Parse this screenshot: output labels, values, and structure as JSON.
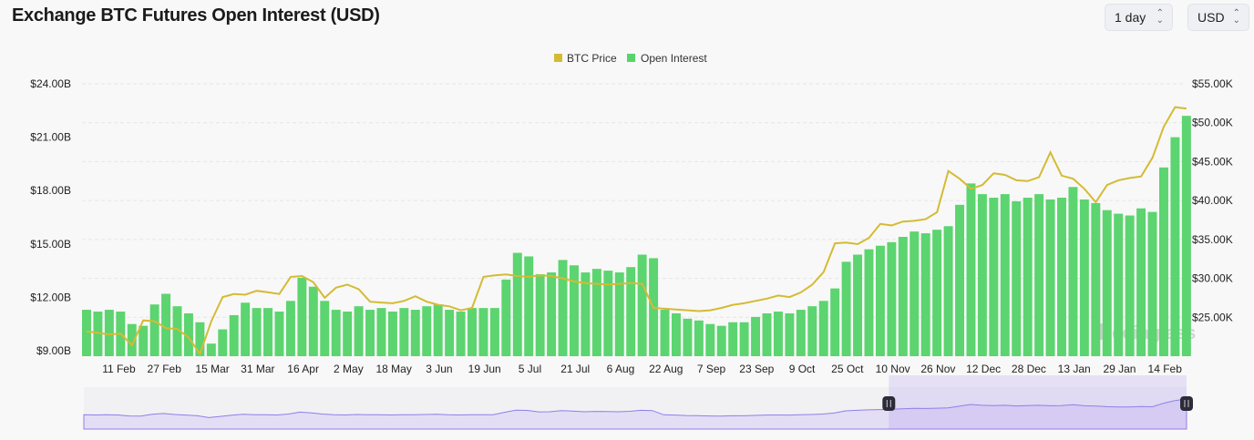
{
  "header": {
    "title": "Exchange BTC Futures Open Interest (USD)",
    "interval_select": "1 day",
    "currency_select": "USD"
  },
  "watermark": "coinglass",
  "chart_data": {
    "type": "bar+line",
    "title": "Exchange BTC Futures Open Interest (USD)",
    "legend": {
      "placement": "top-center",
      "entries": [
        {
          "name": "BTC Price",
          "color": "#d4bb34"
        },
        {
          "name": "Open Interest",
          "color": "#58d36c"
        }
      ]
    },
    "x": {
      "start_date": "29 Jan",
      "interval_days": 4,
      "tick_labels": [
        "11 Feb",
        "27 Feb",
        "15 Mar",
        "31 Mar",
        "16 Apr",
        "2 May",
        "18 May",
        "3 Jun",
        "19 Jun",
        "5 Jul",
        "21 Jul",
        "6 Aug",
        "22 Aug",
        "7 Sep",
        "23 Sep",
        "9 Oct",
        "25 Oct",
        "10 Nov",
        "26 Nov",
        "12 Dec",
        "28 Dec",
        "13 Jan",
        "29 Jan",
        "14 Feb"
      ],
      "tick_day_offsets": [
        13,
        29,
        46,
        62,
        78,
        94,
        110,
        126,
        142,
        158,
        174,
        190,
        206,
        222,
        238,
        254,
        270,
        286,
        302,
        318,
        334,
        350,
        366,
        382
      ]
    },
    "y_left": {
      "label": "Open Interest (USD)",
      "ticks": [
        "$24.00B",
        "$21.00B",
        "$18.00B",
        "$15.00B",
        "$12.00B",
        "$9.00B"
      ],
      "range": [
        9,
        24
      ],
      "unit": "B"
    },
    "y_right": {
      "label": "BTC Price",
      "ticks": [
        "$55.00K",
        "$50.00K",
        "$45.00K",
        "$40.00K",
        "$35.00K",
        "$30.00K",
        "$25.00K"
      ],
      "range": [
        20,
        55
      ],
      "unit": "K"
    },
    "grid": true,
    "series": [
      {
        "name": "Open Interest",
        "axis": "left",
        "type": "bar",
        "values": [
          11.3,
          11.2,
          11.3,
          11.2,
          10.5,
          10.4,
          11.6,
          12.2,
          11.5,
          11.1,
          10.6,
          9.4,
          10.2,
          11.0,
          11.7,
          11.4,
          11.4,
          11.2,
          11.8,
          13.1,
          12.6,
          11.8,
          11.3,
          11.2,
          11.5,
          11.3,
          11.4,
          11.2,
          11.4,
          11.3,
          11.5,
          11.6,
          11.3,
          11.2,
          11.4,
          11.4,
          11.4,
          13.0,
          14.5,
          14.3,
          13.3,
          13.4,
          14.1,
          13.8,
          13.4,
          13.6,
          13.5,
          13.4,
          13.7,
          14.4,
          14.2,
          11.3,
          11.1,
          10.8,
          10.7,
          10.5,
          10.4,
          10.6,
          10.6,
          10.9,
          11.1,
          11.2,
          11.1,
          11.3,
          11.5,
          11.8,
          12.5,
          14.0,
          14.4,
          14.7,
          14.9,
          15.1,
          15.4,
          15.7,
          15.6,
          15.8,
          16.0,
          17.2,
          18.4,
          17.8,
          17.6,
          17.8,
          17.4,
          17.6,
          17.8,
          17.5,
          17.6,
          18.2,
          17.5,
          17.3,
          16.9,
          16.7,
          16.6,
          17.0,
          16.8,
          19.3,
          21.0,
          22.2
        ]
      },
      {
        "name": "BTC Price",
        "axis": "right",
        "type": "line",
        "values": [
          23.2,
          23.0,
          22.8,
          22.9,
          21.4,
          24.6,
          24.5,
          23.6,
          23.5,
          22.4,
          20.3,
          24.5,
          27.6,
          28.0,
          27.9,
          28.4,
          28.2,
          28.0,
          30.2,
          30.3,
          29.5,
          27.5,
          28.8,
          29.2,
          28.6,
          27.0,
          26.9,
          26.8,
          27.1,
          27.7,
          27.0,
          26.6,
          26.4,
          25.9,
          26.2,
          30.2,
          30.4,
          30.5,
          30.3,
          30.2,
          30.4,
          30.3,
          30.0,
          29.6,
          29.4,
          29.3,
          29.2,
          29.3,
          29.4,
          29.3,
          26.2,
          26.1,
          26.0,
          25.9,
          25.8,
          25.9,
          26.2,
          26.6,
          26.8,
          27.1,
          27.4,
          27.8,
          27.6,
          28.2,
          29.2,
          30.8,
          34.5,
          34.6,
          34.4,
          35.2,
          37.0,
          36.8,
          37.3,
          37.4,
          37.6,
          38.5,
          43.8,
          42.8,
          41.5,
          42.0,
          43.5,
          43.3,
          42.6,
          42.5,
          43.0,
          46.2,
          43.2,
          42.8,
          41.5,
          39.8,
          42.0,
          42.6,
          42.9,
          43.1,
          45.5,
          49.5,
          52.0,
          51.8
        ]
      }
    ],
    "navigator": {
      "selected_range_fraction": [
        0.73,
        1.0
      ]
    }
  }
}
